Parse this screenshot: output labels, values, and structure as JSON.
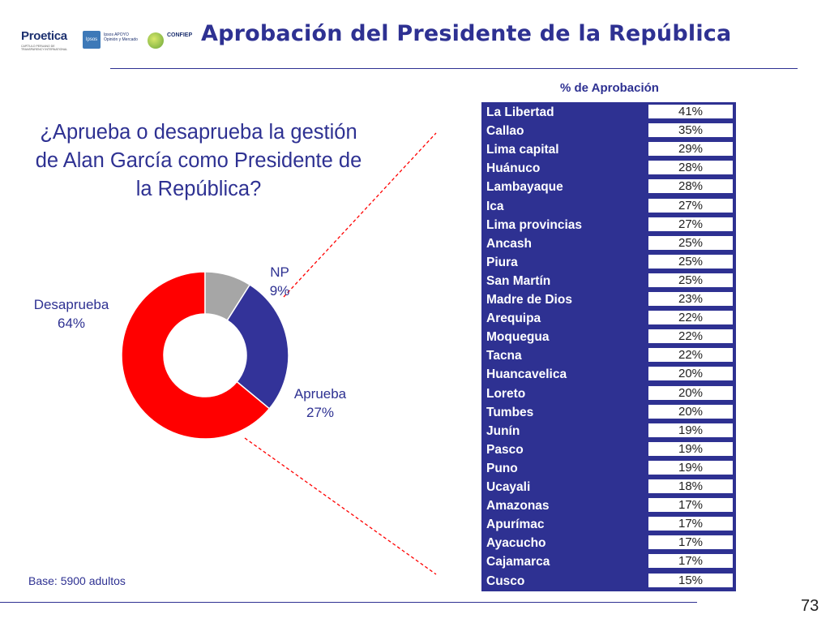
{
  "header": {
    "title": "Aprobación del Presidente de la República",
    "logos": {
      "proetica_name": "Proetica",
      "proetica_tagline": "CAPÍTULO PERUANO DE TRANSPARENCY INTERNATIONAL",
      "ipsos_name": "Ipsos",
      "ipsos_tagline": "Ipsos APOYO Opinión y Mercado",
      "confiep_name": "CONFIEP"
    }
  },
  "question": "¿Aprueba o desaprueba la gestión de Alan García como Presidente de la República?",
  "colors": {
    "accent_blue": "#2e3192",
    "disapprove_red": "#ff0000",
    "np_gray": "#a6a6a6",
    "approve_blue": "#333399",
    "callout_red": "#ff0000"
  },
  "table_header": "% de Aprobación",
  "base_note": "Base: 5900 adultos",
  "page_number": "73",
  "chart_data": [
    {
      "type": "pie",
      "variant": "donut",
      "slices": [
        {
          "label": "Desaprueba",
          "value": 64,
          "display": "64%",
          "color": "#ff0000"
        },
        {
          "label": "NP",
          "value": 9,
          "display": "9%",
          "color": "#a6a6a6"
        },
        {
          "label": "Aprueba",
          "value": 27,
          "display": "27%",
          "color": "#333399"
        }
      ]
    },
    {
      "type": "table",
      "title": "% de Aprobación",
      "rows": [
        {
          "region": "La Libertad",
          "value": "41%"
        },
        {
          "region": "Callao",
          "value": "35%"
        },
        {
          "region": "Lima capital",
          "value": "29%"
        },
        {
          "region": "Huánuco",
          "value": "28%"
        },
        {
          "region": "Lambayaque",
          "value": "28%"
        },
        {
          "region": "Ica",
          "value": "27%"
        },
        {
          "region": "Lima provincias",
          "value": "27%"
        },
        {
          "region": "Ancash",
          "value": "25%"
        },
        {
          "region": "Piura",
          "value": "25%"
        },
        {
          "region": "San Martín",
          "value": "25%"
        },
        {
          "region": "Madre de Dios",
          "value": "23%"
        },
        {
          "region": "Arequipa",
          "value": "22%"
        },
        {
          "region": "Moquegua",
          "value": "22%"
        },
        {
          "region": "Tacna",
          "value": "22%"
        },
        {
          "region": "Huancavelica",
          "value": "20%"
        },
        {
          "region": "Loreto",
          "value": "20%"
        },
        {
          "region": "Tumbes",
          "value": "20%"
        },
        {
          "region": "Junín",
          "value": "19%"
        },
        {
          "region": "Pasco",
          "value": "19%"
        },
        {
          "region": "Puno",
          "value": "19%"
        },
        {
          "region": "Ucayali",
          "value": "18%"
        },
        {
          "region": "Amazonas",
          "value": "17%"
        },
        {
          "region": "Apurímac",
          "value": "17%"
        },
        {
          "region": "Ayacucho",
          "value": "17%"
        },
        {
          "region": "Cajamarca",
          "value": "17%"
        },
        {
          "region": "Cusco",
          "value": "15%"
        }
      ]
    }
  ]
}
